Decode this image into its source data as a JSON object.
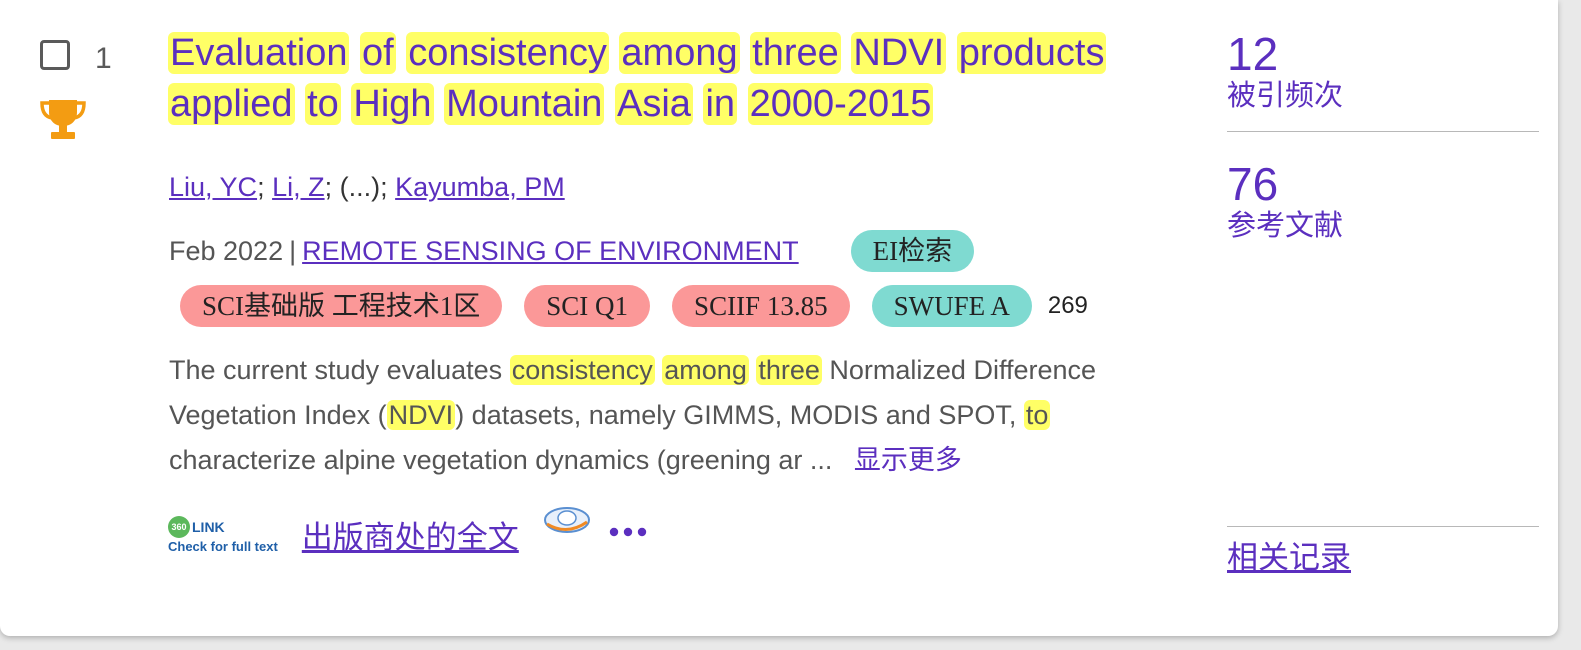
{
  "record": {
    "index": "1",
    "title_words": [
      {
        "t": "Evaluation",
        "hl": true
      },
      {
        "t": "of",
        "hl": true
      },
      {
        "t": "consistency",
        "hl": true
      },
      {
        "t": "among",
        "hl": true
      },
      {
        "t": "three",
        "hl": true
      },
      {
        "t": "NDVI",
        "hl": true
      },
      {
        "t": "products",
        "hl": true
      },
      {
        "t": "applied",
        "hl": true
      },
      {
        "t": "to",
        "hl": true
      },
      {
        "t": "High",
        "hl": true
      },
      {
        "t": "Mountain",
        "hl": true
      },
      {
        "t": "Asia",
        "hl": true
      },
      {
        "t": "in",
        "hl": true
      },
      {
        "t": "2000-2015",
        "hl": true
      }
    ],
    "authors": {
      "a1": "Liu, YC",
      "a2": "Li, Z",
      "ellipsis": "(...)",
      "a3": "Kayumba, PM"
    },
    "date": "Feb 2022",
    "pub_sep": "|",
    "journal": "REMOTE SENSING OF ENVIRONMENT",
    "ei_badge": "EI检索",
    "badges": {
      "sci_base": "SCI基础版 工程技术1区",
      "sci_q": "SCI Q1",
      "sciif": "SCIIF 13.85",
      "swufe": "SWUFE A",
      "count": "269"
    },
    "abstract": {
      "p1": "The current study evaluates ",
      "h1": "consistency",
      "h2": "among",
      "h3": "three",
      "p2": " Normalized Difference Vegetation Index (",
      "h4": "NDVI",
      "p3": ") datasets, namely GIMMS, MODIS and SPOT, ",
      "h5": "to",
      "p4": " characterize alpine vegetation dynamics (greening ar ... ",
      "more": "显示更多"
    },
    "links": {
      "link360_top": "LINK",
      "link360_circle": "360",
      "link360_sub": "Check for full text",
      "fulltext": "出版商处的全文"
    },
    "metrics": {
      "citations_num": "12",
      "citations_label": "被引频次",
      "refs_num": "76",
      "refs_label": "参考文献",
      "related": "相关记录"
    }
  },
  "colors": {
    "accent": "#5b2fbf",
    "highlight": "#ffff66",
    "teal_badge": "#7fdad1",
    "pink_badge": "#fb9898",
    "trophy": "#f39c12"
  }
}
